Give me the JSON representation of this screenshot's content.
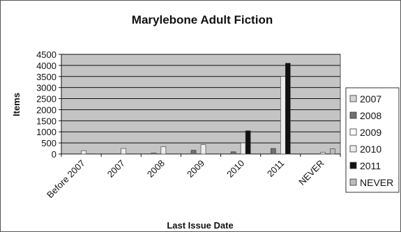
{
  "chart_data": {
    "type": "bar",
    "title": "Marylebone Adult Fiction",
    "xlabel": "Last Issue Date",
    "ylabel": "Items",
    "categories": [
      "Before 2007",
      "2007",
      "2008",
      "2009",
      "2010",
      "2011",
      "NEVER"
    ],
    "ylim": [
      0,
      4500
    ],
    "yticks": [
      0,
      500,
      1000,
      1500,
      2000,
      2500,
      3000,
      3500,
      4000,
      4500
    ],
    "grid": true,
    "legend_position": "right",
    "series": [
      {
        "name": "2007",
        "color": "#d6d6d6",
        "values": [
          0,
          0,
          0,
          0,
          0,
          0,
          0
        ]
      },
      {
        "name": "2008",
        "color": "#707070",
        "values": [
          0,
          0,
          40,
          170,
          100,
          250,
          0
        ]
      },
      {
        "name": "2009",
        "color": "#ffffff",
        "values": [
          0,
          0,
          0,
          0,
          0,
          0,
          0
        ]
      },
      {
        "name": "2010",
        "color": "#ededed",
        "values": [
          150,
          250,
          330,
          420,
          500,
          3500,
          70
        ]
      },
      {
        "name": "2011",
        "color": "#111111",
        "values": [
          0,
          0,
          0,
          0,
          1050,
          4100,
          0
        ]
      },
      {
        "name": "NEVER",
        "color": "#bcbcbc",
        "values": [
          0,
          0,
          0,
          0,
          0,
          0,
          230
        ]
      }
    ]
  },
  "colors": {
    "plot_background": "#c4c4c4",
    "gridline": "#111111",
    "frame": "#555555"
  }
}
